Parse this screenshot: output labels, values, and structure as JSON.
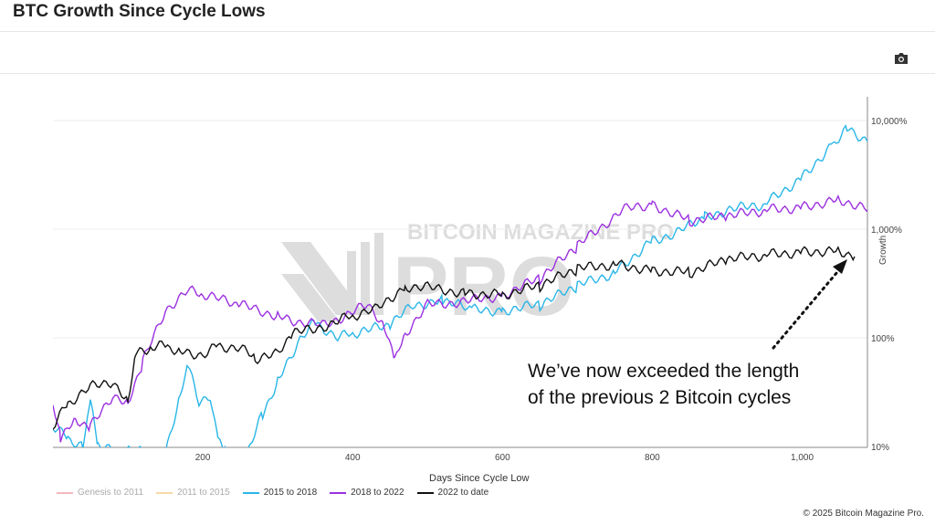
{
  "header": {
    "title": "BTC Growth Since Cycle Lows",
    "camera_icon": "camera-icon"
  },
  "annotation": {
    "line1": "We’ve now exceeded the length",
    "line2": "of the previous 2 Bitcoin cycles"
  },
  "watermark": "BITCOIN MAGAZINE PRO",
  "copyright": "© 2025 Bitcoin Magazine Pro.",
  "chart_data": {
    "type": "line",
    "xlabel": "Days Since Cycle Low",
    "ylabel": "Growth",
    "yscale": "log",
    "xlim": [
      0,
      1088
    ],
    "ylim": [
      10,
      13000
    ],
    "xticks": [
      {
        "v": 200,
        "label": "200"
      },
      {
        "v": 400,
        "label": "400"
      },
      {
        "v": 600,
        "label": "600"
      },
      {
        "v": 800,
        "label": "800"
      },
      {
        "v": 1000,
        "label": "1,000"
      }
    ],
    "yticks": [
      {
        "v": 10,
        "label": "10%"
      },
      {
        "v": 100,
        "label": "100%"
      },
      {
        "v": 1000,
        "label": "1,000%"
      },
      {
        "v": 10000,
        "label": "10,000%"
      }
    ],
    "grid": true,
    "legend_placement": "bottom-left",
    "series": [
      {
        "name": "Genesis to 2011",
        "color": "#f4b8c0",
        "hidden": true,
        "points": []
      },
      {
        "name": "2011 to 2015",
        "color": "#f8d9a8",
        "hidden": true,
        "points": []
      },
      {
        "name": "2015 to 2018",
        "color": "#29b6e8",
        "points": [
          [
            0,
            15
          ],
          [
            20,
            12
          ],
          [
            40,
            10
          ],
          [
            50,
            25
          ],
          [
            60,
            10
          ],
          [
            80,
            9
          ],
          [
            150,
            9
          ],
          [
            170,
            30
          ],
          [
            180,
            55
          ],
          [
            195,
            25
          ],
          [
            210,
            30
          ],
          [
            220,
            12
          ],
          [
            230,
            9
          ],
          [
            260,
            9
          ],
          [
            280,
            20
          ],
          [
            300,
            40
          ],
          [
            330,
            100
          ],
          [
            350,
            140
          ],
          [
            380,
            100
          ],
          [
            400,
            110
          ],
          [
            450,
            130
          ],
          [
            480,
            200
          ],
          [
            520,
            220
          ],
          [
            560,
            180
          ],
          [
            600,
            180
          ],
          [
            650,
            200
          ],
          [
            700,
            300
          ],
          [
            750,
            400
          ],
          [
            800,
            800
          ],
          [
            830,
            900
          ],
          [
            870,
            1300
          ],
          [
            900,
            1500
          ],
          [
            950,
            1700
          ],
          [
            1000,
            3000
          ],
          [
            1040,
            6000
          ],
          [
            1060,
            8500
          ],
          [
            1088,
            6500
          ]
        ]
      },
      {
        "name": "2018 to 2022",
        "color": "#9b30e0",
        "points": [
          [
            0,
            25
          ],
          [
            10,
            12
          ],
          [
            30,
            18
          ],
          [
            50,
            15
          ],
          [
            80,
            30
          ],
          [
            100,
            25
          ],
          [
            120,
            60
          ],
          [
            150,
            180
          ],
          [
            180,
            270
          ],
          [
            200,
            250
          ],
          [
            250,
            200
          ],
          [
            300,
            160
          ],
          [
            330,
            140
          ],
          [
            360,
            130
          ],
          [
            390,
            160
          ],
          [
            420,
            200
          ],
          [
            440,
            140
          ],
          [
            456,
            60
          ],
          [
            470,
            110
          ],
          [
            500,
            200
          ],
          [
            560,
            220
          ],
          [
            600,
            250
          ],
          [
            650,
            350
          ],
          [
            700,
            700
          ],
          [
            760,
            1500
          ],
          [
            800,
            1700
          ],
          [
            850,
            1200
          ],
          [
            900,
            1300
          ],
          [
            950,
            1500
          ],
          [
            1000,
            1600
          ],
          [
            1050,
            1900
          ],
          [
            1088,
            1500
          ]
        ]
      },
      {
        "name": "2022 to date",
        "color": "#111111",
        "points": [
          [
            0,
            15
          ],
          [
            20,
            25
          ],
          [
            50,
            35
          ],
          [
            80,
            40
          ],
          [
            100,
            26
          ],
          [
            110,
            70
          ],
          [
            130,
            80
          ],
          [
            150,
            85
          ],
          [
            170,
            75
          ],
          [
            200,
            70
          ],
          [
            220,
            85
          ],
          [
            250,
            80
          ],
          [
            270,
            65
          ],
          [
            300,
            70
          ],
          [
            320,
            110
          ],
          [
            350,
            120
          ],
          [
            400,
            160
          ],
          [
            430,
            180
          ],
          [
            470,
            300
          ],
          [
            500,
            290
          ],
          [
            550,
            260
          ],
          [
            600,
            250
          ],
          [
            650,
            300
          ],
          [
            700,
            430
          ],
          [
            750,
            480
          ],
          [
            800,
            420
          ],
          [
            850,
            400
          ],
          [
            900,
            520
          ],
          [
            950,
            580
          ],
          [
            1000,
            620
          ],
          [
            1050,
            640
          ],
          [
            1070,
            560
          ]
        ]
      }
    ]
  }
}
